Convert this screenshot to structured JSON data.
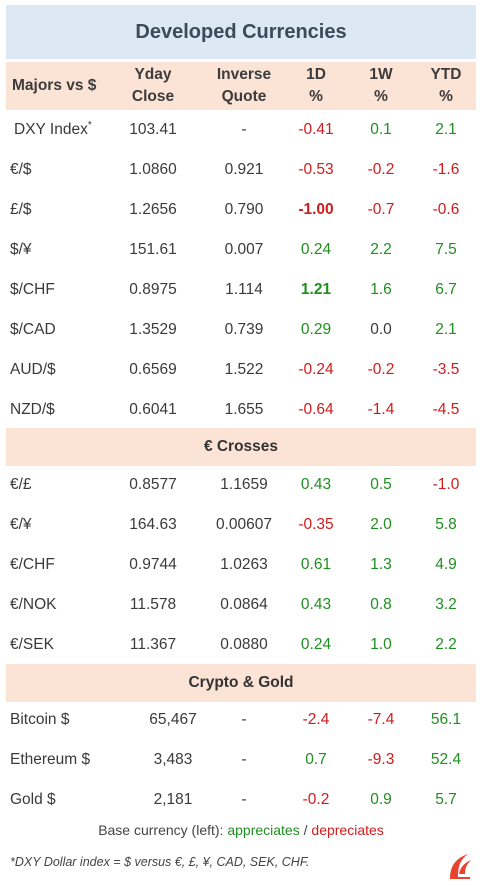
{
  "title": "Developed Currencies",
  "header": {
    "name": "Majors vs $",
    "yday_line1": "Yday",
    "yday_line2": "Close",
    "inverse_line1": "Inverse",
    "inverse_line2": "Quote",
    "d1_line1": "1D",
    "d1_line2": "%",
    "w1_line1": "1W",
    "w1_line2": "%",
    "ytd_line1": "YTD",
    "ytd_line2": "%"
  },
  "majors": [
    {
      "name": "DXY Index",
      "sup": "*",
      "yday": "103.41",
      "inverse": "-",
      "d1": "-0.41",
      "w1": "0.1",
      "ytd": "2.1",
      "d1_bold": false
    },
    {
      "name": "€/$",
      "sup": "",
      "yday": "1.0860",
      "inverse": "0.921",
      "d1": "-0.53",
      "w1": "-0.2",
      "ytd": "-1.6",
      "d1_bold": false
    },
    {
      "name": "£/$",
      "sup": "",
      "yday": "1.2656",
      "inverse": "0.790",
      "d1": "-1.00",
      "w1": "-0.7",
      "ytd": "-0.6",
      "d1_bold": true
    },
    {
      "name": "$/¥",
      "sup": "",
      "yday": "151.61",
      "inverse": "0.007",
      "d1": "0.24",
      "w1": "2.2",
      "ytd": "7.5",
      "d1_bold": false
    },
    {
      "name": "$/CHF",
      "sup": "",
      "yday": "0.8975",
      "inverse": "1.114",
      "d1": "1.21",
      "w1": "1.6",
      "ytd": "6.7",
      "d1_bold": true
    },
    {
      "name": "$/CAD",
      "sup": "",
      "yday": "1.3529",
      "inverse": "0.739",
      "d1": "0.29",
      "w1": "0.0",
      "ytd": "2.1",
      "d1_bold": false
    },
    {
      "name": "AUD/$",
      "sup": "",
      "yday": "0.6569",
      "inverse": "1.522",
      "d1": "-0.24",
      "w1": "-0.2",
      "ytd": "-3.5",
      "d1_bold": false
    },
    {
      "name": "NZD/$",
      "sup": "",
      "yday": "0.6041",
      "inverse": "1.655",
      "d1": "-0.64",
      "w1": "-1.4",
      "ytd": "-4.5",
      "d1_bold": false
    }
  ],
  "crosses_title": "€ Crosses",
  "crosses": [
    {
      "name": "€/£",
      "yday": "0.8577",
      "inverse": "1.1659",
      "d1": "0.43",
      "w1": "0.5",
      "ytd": "-1.0"
    },
    {
      "name": "€/¥",
      "yday": "164.63",
      "inverse": "0.00607",
      "d1": "-0.35",
      "w1": "2.0",
      "ytd": "5.8"
    },
    {
      "name": "€/CHF",
      "yday": "0.9744",
      "inverse": "1.0263",
      "d1": "0.61",
      "w1": "1.3",
      "ytd": "4.9"
    },
    {
      "name": "€/NOK",
      "yday": "11.578",
      "inverse": "0.0864",
      "d1": "0.43",
      "w1": "0.8",
      "ytd": "3.2"
    },
    {
      "name": "€/SEK",
      "yday": "11.367",
      "inverse": "0.0880",
      "d1": "0.24",
      "w1": "1.0",
      "ytd": "2.2"
    }
  ],
  "crypto_title": "Crypto  &  Gold",
  "crypto": [
    {
      "name": "Bitcoin $",
      "yday": "65,467",
      "inverse": "-",
      "d1": "-2.4",
      "w1": "-7.4",
      "ytd": "56.1"
    },
    {
      "name": "Ethereum $",
      "yday": "3,483",
      "inverse": "-",
      "d1": "0.7",
      "w1": "-9.3",
      "ytd": "52.4"
    },
    {
      "name": "Gold $",
      "yday": "2,181",
      "inverse": "-",
      "d1": "-0.2",
      "w1": "0.9",
      "ytd": "5.7"
    }
  ],
  "legend": {
    "prefix": "Base currency (left):",
    "appreciates": "appreciates",
    "separator": "/",
    "depreciates": "depreciates"
  },
  "footnote": "*DXY Dollar index = $ versus €, £, ¥, CAD, SEK, CHF.",
  "colors": {
    "positive": "#1f8f1f",
    "negative": "#d01c1c",
    "header_band": "#fbe3d5",
    "title_band": "#dce9f5",
    "logo": "#e8432f"
  },
  "logo_icon": "flame-logo-icon"
}
